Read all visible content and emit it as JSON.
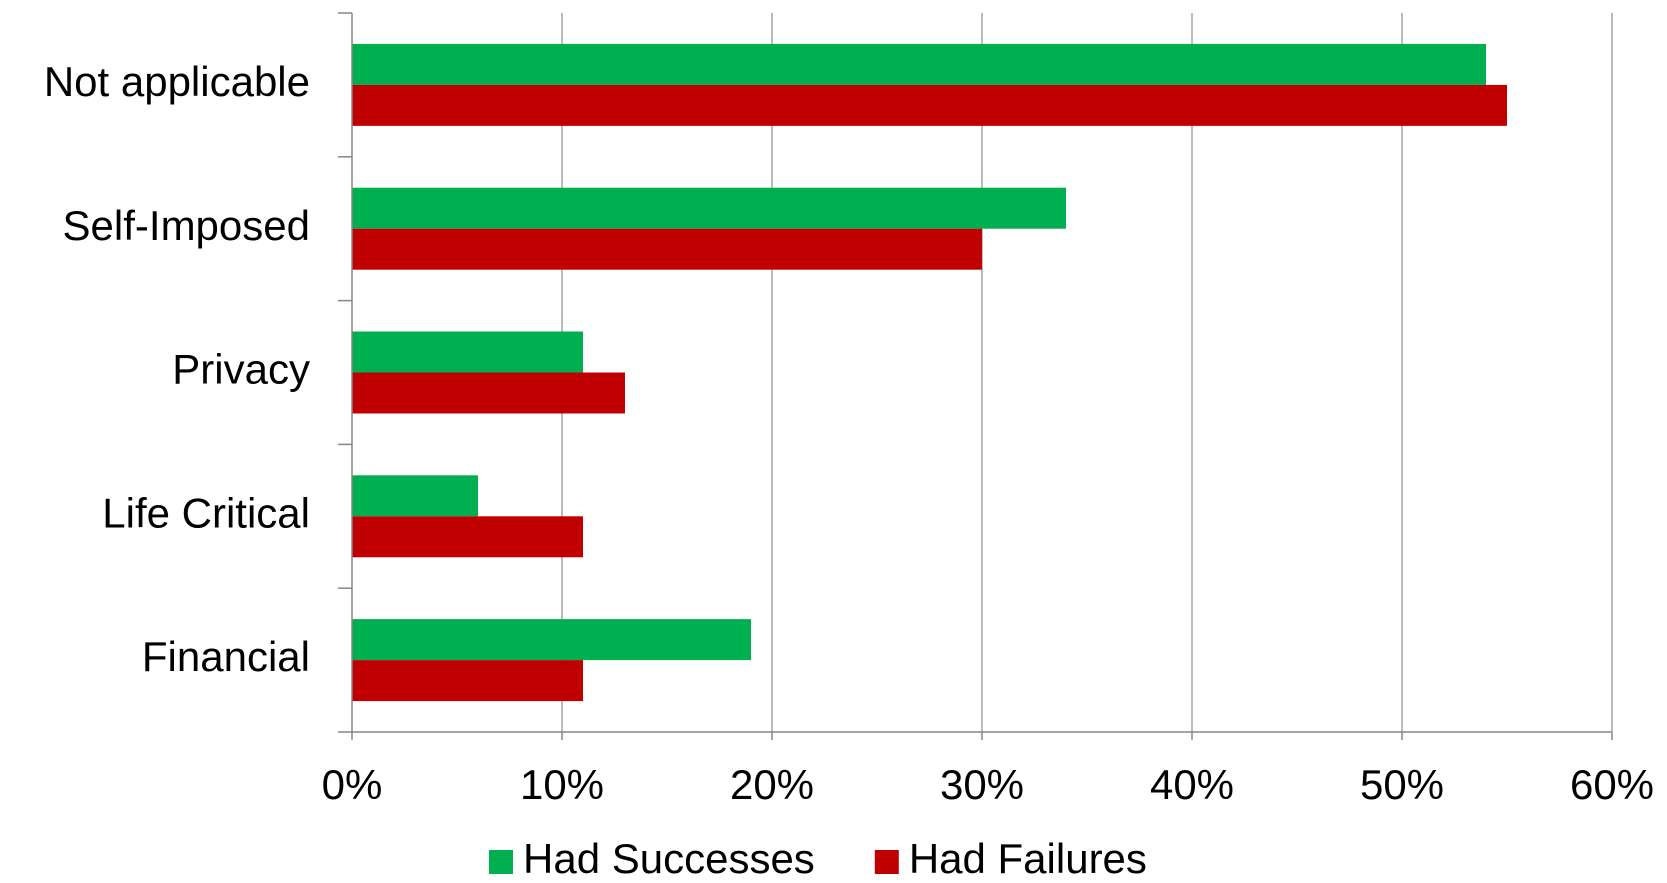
{
  "chart_data": {
    "type": "hbar",
    "categories": [
      "Not applicable",
      "Self-Imposed",
      "Privacy",
      "Life Critical",
      "Financial"
    ],
    "series": [
      {
        "name": "Had Successes",
        "color": "#00b050",
        "values": [
          54,
          34,
          11,
          6,
          19
        ]
      },
      {
        "name": "Had Failures",
        "color": "#c00000",
        "values": [
          55,
          30,
          13,
          11,
          11
        ]
      }
    ],
    "xlim": [
      0,
      60
    ],
    "xticks": [
      {
        "value": 0,
        "label": "0%"
      },
      {
        "value": 10,
        "label": "10%"
      },
      {
        "value": 20,
        "label": "20%"
      },
      {
        "value": 30,
        "label": "30%"
      },
      {
        "value": 40,
        "label": "40%"
      },
      {
        "value": 50,
        "label": "50%"
      },
      {
        "value": 60,
        "label": "60%"
      }
    ],
    "grid": true,
    "legend": "bottom"
  }
}
